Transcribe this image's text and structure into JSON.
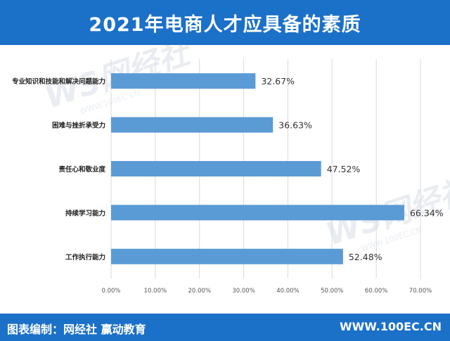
{
  "header": {
    "title": "2021年电商人才应具备的素质"
  },
  "footer": {
    "credit": "图表编制：网经社  赢动教育",
    "url": "WWW.100EC.CN"
  },
  "watermark": {
    "text": "网经社",
    "url": "WWW.100EC.CN"
  },
  "colors": {
    "header_bg": "#1b70c8",
    "bar": "#5b9bd5",
    "grid": "#d9d9d9",
    "text": "#333333"
  },
  "chart_data": {
    "type": "bar",
    "orientation": "horizontal",
    "title": "2021年电商人才应具备的素质",
    "categories": [
      "专业知识和技能和解决问题能力",
      "困难与挫折承受力",
      "责任心和敬业度",
      "持续学习能力",
      "工作执行能力"
    ],
    "values": [
      32.67,
      36.63,
      47.52,
      66.34,
      52.48
    ],
    "value_labels": [
      "32.67%",
      "36.63%",
      "47.52%",
      "66.34%",
      "52.48%"
    ],
    "xlim": [
      0,
      70
    ],
    "xticks": [
      "0.00%",
      "10.00%",
      "20.00%",
      "30.00%",
      "40.00%",
      "50.00%",
      "60.00%",
      "70.00%"
    ],
    "grid": "vertical",
    "legend": "none"
  }
}
